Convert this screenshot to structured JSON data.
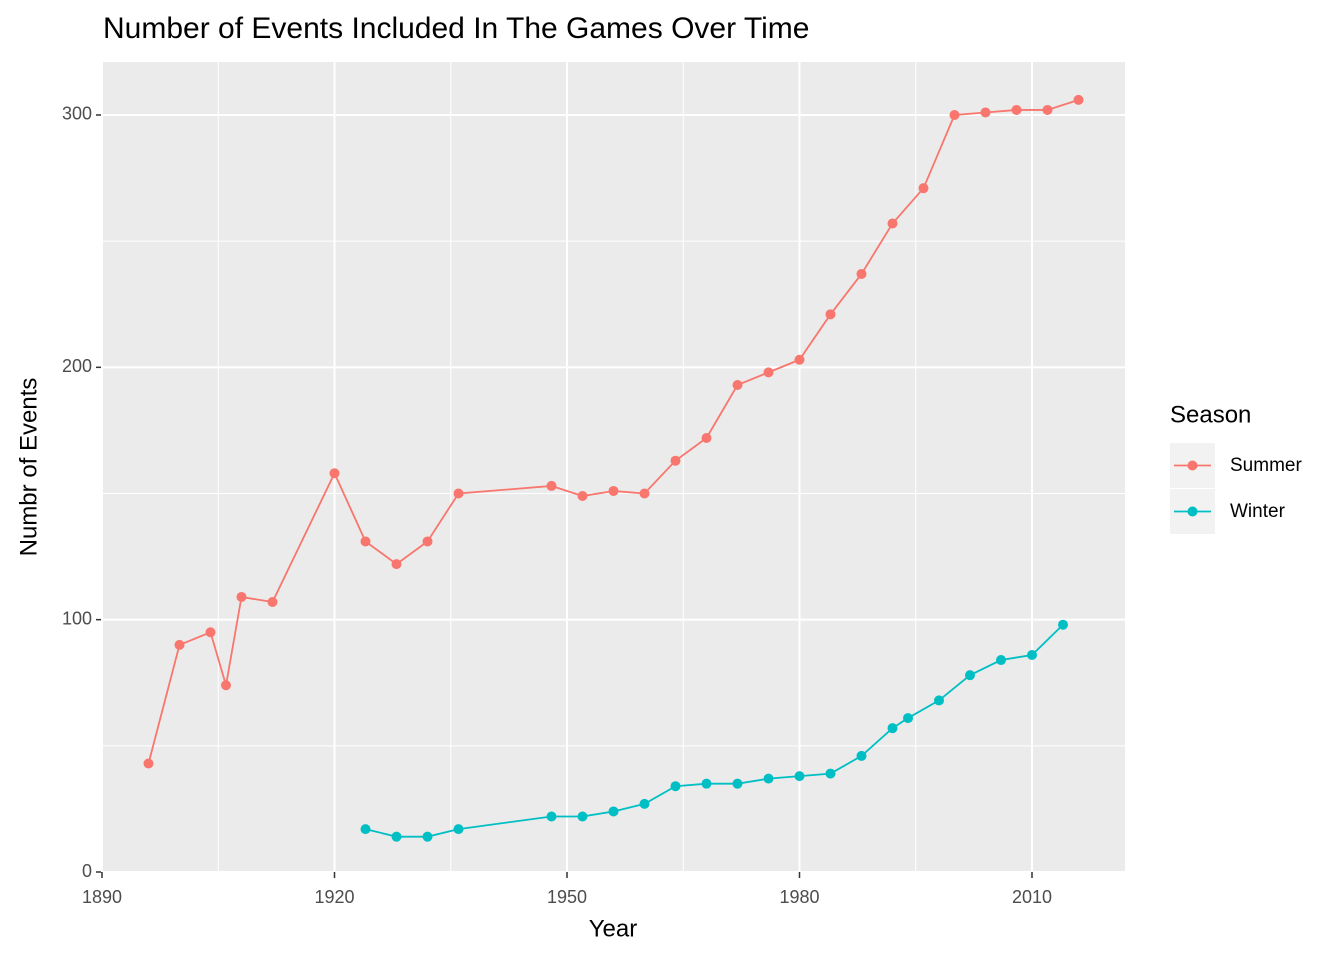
{
  "chart_data": {
    "type": "line",
    "title": "Number of Events Included In The Games Over Time",
    "x_label": "Year",
    "y_label": "Numbr of Events",
    "legend_title": "Season",
    "legend_position": "right",
    "xlim": [
      1890,
      2022
    ],
    "xticks": [
      1890,
      1920,
      1950,
      1980,
      2010
    ],
    "x_minor_ticks": [
      1905,
      1935,
      1965,
      1995
    ],
    "ylim": [
      0,
      321
    ],
    "yticks": [
      0,
      100,
      200,
      300
    ],
    "y_minor_ticks": [
      50,
      150,
      250
    ],
    "grid": true,
    "series": [
      {
        "name": "Summer",
        "color": "#F8766D",
        "x": [
          1896,
          1900,
          1904,
          1906,
          1908,
          1912,
          1920,
          1924,
          1928,
          1932,
          1936,
          1948,
          1952,
          1956,
          1960,
          1964,
          1968,
          1972,
          1976,
          1980,
          1984,
          1988,
          1992,
          1996,
          2000,
          2004,
          2008,
          2012,
          2016
        ],
        "values": [
          43,
          90,
          95,
          74,
          109,
          107,
          158,
          131,
          122,
          131,
          150,
          153,
          149,
          151,
          150,
          163,
          172,
          193,
          198,
          203,
          221,
          237,
          257,
          271,
          300,
          301,
          302,
          302,
          306
        ]
      },
      {
        "name": "Winter",
        "color": "#00BFC4",
        "x": [
          1924,
          1928,
          1932,
          1936,
          1948,
          1952,
          1956,
          1960,
          1964,
          1968,
          1972,
          1976,
          1980,
          1984,
          1988,
          1992,
          1994,
          1998,
          2002,
          2006,
          2010,
          2014
        ],
        "values": [
          17,
          14,
          14,
          17,
          22,
          22,
          24,
          27,
          34,
          35,
          35,
          37,
          38,
          39,
          46,
          57,
          61,
          68,
          78,
          84,
          86,
          98
        ]
      }
    ]
  }
}
